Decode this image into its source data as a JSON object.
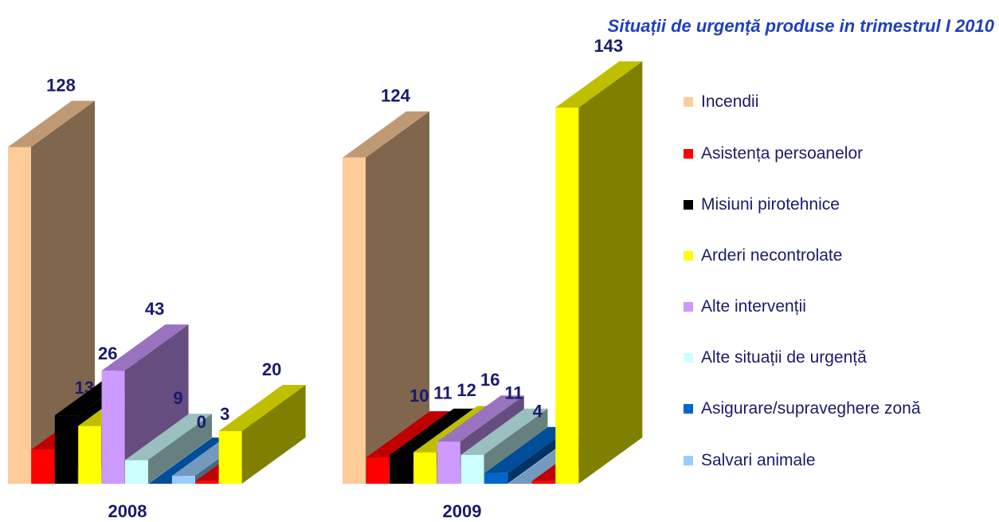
{
  "chart_data": {
    "type": "bar3d",
    "title": "Situații de urgență produse in trimestrul I 2010",
    "categories": [
      "2008",
      "2009"
    ],
    "series": [
      {
        "name": "Incendii",
        "color": "#ffcc99",
        "values": [
          128,
          124
        ]
      },
      {
        "name": "Asistența persoanelor",
        "color": "#ff0000",
        "values": [
          13,
          10
        ]
      },
      {
        "name": "Misiuni pirotehnice",
        "color": "#000000",
        "values": [
          26,
          11
        ]
      },
      {
        "name": "Arderi necontrolate",
        "color": "#ffff00",
        "values": [
          22,
          12
        ]
      },
      {
        "name": "Alte intervenții",
        "color": "#cc99ff",
        "values": [
          43,
          16
        ]
      },
      {
        "name": "Alte situații de urgență",
        "color": "#ccffff",
        "values": [
          9,
          11
        ]
      },
      {
        "name": "Asigurare/supraveghere zonă",
        "color": "#0066cc",
        "values": [
          0,
          4
        ]
      },
      {
        "name": "Salvari animale",
        "color": "#99ccff",
        "values": [
          3,
          0
        ]
      },
      {
        "color": "#ff0000",
        "values": [
          1,
          1
        ]
      },
      {
        "color": "#ffff00",
        "values": [
          20,
          143
        ]
      }
    ],
    "legend": "right"
  }
}
